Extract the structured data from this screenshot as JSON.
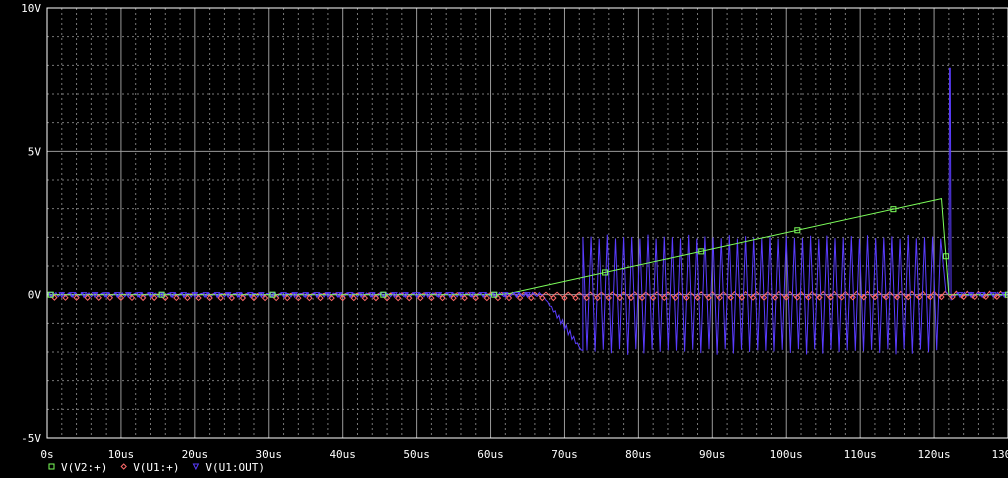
{
  "chart_data": {
    "type": "line",
    "x_unit": "us",
    "y_unit": "V",
    "xlim": [
      0,
      130
    ],
    "ylim": [
      -5,
      10
    ],
    "grid": true,
    "legend_placement": "bottom-left",
    "x_ticks": [
      "0s",
      "10us",
      "20us",
      "30us",
      "40us",
      "50us",
      "60us",
      "70us",
      "80us",
      "90us",
      "100us",
      "110us",
      "120us",
      "130us"
    ],
    "y_ticks": [
      "10V",
      "5V",
      "0V",
      "-5V"
    ],
    "series": [
      {
        "name": "V(V2:+)",
        "color": "#7cff5a",
        "marker": "square",
        "x": [
          0,
          61,
          62.7,
          121,
          122
        ],
        "y": [
          0,
          0,
          0.05,
          3.35,
          0.0
        ]
      },
      {
        "name": "V(U1:+)",
        "color": "#ff6a6a",
        "marker": "diamond",
        "x": [
          0,
          130
        ],
        "y": [
          0,
          0
        ],
        "ripple": 0.12
      },
      {
        "name": "V(U1:OUT)",
        "color": "#5a3cff",
        "marker": "triangle-down",
        "x": [
          0,
          67,
          70,
          72,
          72.5,
          121.3,
          122,
          122.15,
          122.4,
          130
        ],
        "y": [
          0,
          0,
          -1.1,
          -2.0,
          2.0,
          2.0,
          0.1,
          7.9,
          0,
          0
        ],
        "oscillation_band": [
          72.5,
          121.3,
          -2.1,
          2.1
        ]
      }
    ]
  }
}
